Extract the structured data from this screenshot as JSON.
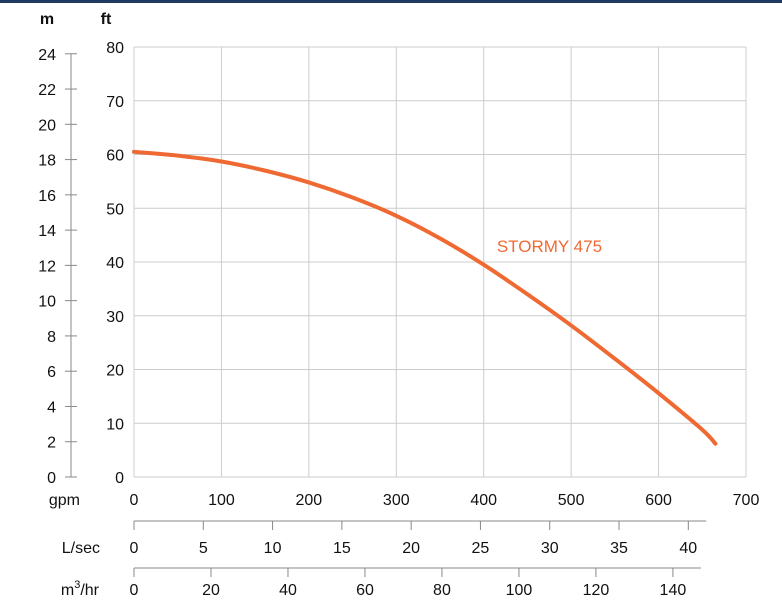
{
  "chart_data": {
    "type": "line",
    "colors": {
      "series": "#ef6a33",
      "grid": "#cccccc",
      "axis": "#888888",
      "text": "#111111",
      "topbar": "#1f3a5f"
    },
    "grid": true,
    "x_axes": {
      "gpm": {
        "label": "gpm",
        "ticks": [
          0,
          100,
          200,
          300,
          400,
          500,
          600,
          700
        ],
        "range": [
          0,
          700
        ]
      },
      "lsec": {
        "label": "L/sec",
        "ticks": [
          0,
          5,
          10,
          15,
          20,
          25,
          30,
          35,
          40
        ]
      },
      "m3hr": {
        "label_base": "m",
        "label_sup": "3",
        "label_tail": "/hr",
        "ticks": [
          0,
          20,
          40,
          60,
          80,
          100,
          120,
          140
        ]
      }
    },
    "y_axes": {
      "ft": {
        "label": "ft",
        "ticks": [
          0,
          10,
          20,
          30,
          40,
          50,
          60,
          70,
          80
        ],
        "range": [
          0,
          80
        ]
      },
      "m": {
        "label": "m",
        "ticks": [
          0,
          2,
          4,
          6,
          8,
          10,
          12,
          14,
          16,
          18,
          20,
          22,
          24
        ]
      }
    },
    "series": [
      {
        "name": "STORMY 475",
        "x": [
          0,
          50,
          100,
          150,
          200,
          250,
          300,
          350,
          400,
          450,
          500,
          550,
          600,
          650,
          665
        ],
        "y": [
          60.5,
          59.8,
          58.7,
          57.0,
          54.8,
          52.0,
          48.6,
          44.4,
          39.5,
          34.0,
          28.2,
          22.0,
          15.6,
          8.8,
          6.2
        ]
      }
    ]
  }
}
